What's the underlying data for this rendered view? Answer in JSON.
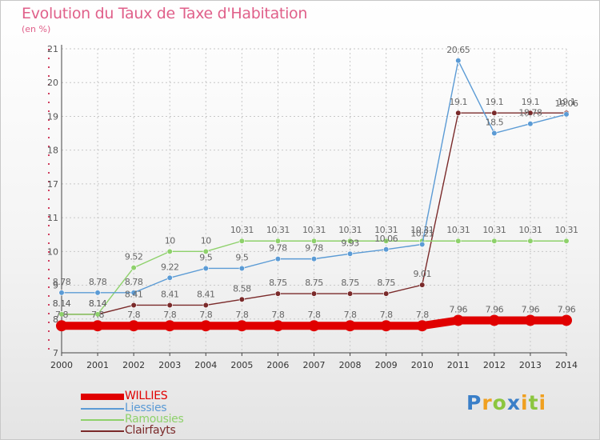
{
  "header": {
    "title": "Evolution du Taux de Taxe d'Habitation",
    "subtitle": "(en %)"
  },
  "colors": {
    "title": "#e0608a",
    "grid_v": "#c8c8c8",
    "grid_h": "#c8c8c8",
    "label": "#555555",
    "axis": "#444444"
  },
  "logo": {
    "letters": [
      {
        "ch": "P",
        "color": "#3a7fc8"
      },
      {
        "ch": "r",
        "color": "#f0a020"
      },
      {
        "ch": "o",
        "color": "#8cc63f"
      },
      {
        "ch": "x",
        "color": "#3a7fc8"
      },
      {
        "ch": "i",
        "color": "#f0a020"
      },
      {
        "ch": "t",
        "color": "#8cc63f"
      },
      {
        "ch": "i",
        "color": "#f0a020"
      }
    ]
  },
  "chart_data": {
    "type": "line",
    "title": "Evolution du Taux de Taxe d'Habitation",
    "subtitle": "(en %)",
    "xlabel": "",
    "ylabel": "",
    "x": [
      "2000",
      "2001",
      "2002",
      "2003",
      "2004",
      "2005",
      "2006",
      "2007",
      "2008",
      "2009",
      "2010",
      "2011",
      "2012",
      "2013",
      "2014"
    ],
    "y_ticks": [
      7,
      8,
      9,
      10,
      11,
      17,
      18,
      19,
      20,
      21
    ],
    "y_tick_labels": [
      "7",
      "8",
      "9",
      "10",
      "11",
      "17",
      "18",
      "19",
      "20",
      "21"
    ],
    "ylim": [
      7,
      21
    ],
    "grid": true,
    "legend_position": "bottom-left",
    "series": [
      {
        "name": "WILLIES",
        "color": "#e00000",
        "values": [
          7.8,
          7.8,
          7.8,
          7.8,
          7.8,
          7.8,
          7.8,
          7.8,
          7.8,
          7.8,
          7.8,
          7.96,
          7.96,
          7.96,
          7.96
        ],
        "labels": [
          "7.8",
          "7.8",
          "7.8",
          "7.8",
          "7.8",
          "7.8",
          "7.8",
          "7.8",
          "7.8",
          "7.8",
          "7.8",
          "7.96",
          "7.96",
          "7.96",
          "7.96"
        ]
      },
      {
        "name": "Liessies",
        "color": "#5b9bd5",
        "values": [
          8.78,
          8.78,
          8.78,
          9.22,
          9.5,
          9.5,
          9.78,
          9.78,
          9.93,
          10.06,
          10.21,
          20.65,
          18.5,
          18.78,
          19.06
        ],
        "labels": [
          "8.78",
          "8.78",
          "8.78",
          "9.22",
          "9.5",
          "9.5",
          "9.78",
          "9.78",
          "9.93",
          "10.06",
          "10.21",
          "20.65",
          "18.5",
          "18.78",
          "19.06"
        ]
      },
      {
        "name": "Ramousies",
        "color": "#8ed16b",
        "values": [
          8.14,
          8.14,
          9.52,
          10.0,
          10.0,
          10.31,
          10.31,
          10.31,
          10.31,
          10.31,
          10.31,
          10.31,
          10.31,
          10.31,
          10.31
        ],
        "labels": [
          "8.14",
          "8.14",
          "9.52",
          "10",
          "10",
          "10.31",
          "10.31",
          "10.31",
          "10.31",
          "10.31",
          "10.31",
          "10.31",
          "10.31",
          "10.31",
          "10.31"
        ]
      },
      {
        "name": "Clairfayts",
        "color": "#7a2a2a",
        "values": [
          8.14,
          8.14,
          8.41,
          8.41,
          8.41,
          8.58,
          8.75,
          8.75,
          8.75,
          8.75,
          9.01,
          19.1,
          19.1,
          19.1,
          19.1
        ],
        "labels": [
          "8.14",
          "8.14",
          "8.41",
          "8.41",
          "8.41",
          "8.58",
          "8.75",
          "8.75",
          "8.75",
          "8.75",
          "9.01",
          "19.1",
          "19.1",
          "19.1",
          "19.1"
        ]
      }
    ]
  }
}
